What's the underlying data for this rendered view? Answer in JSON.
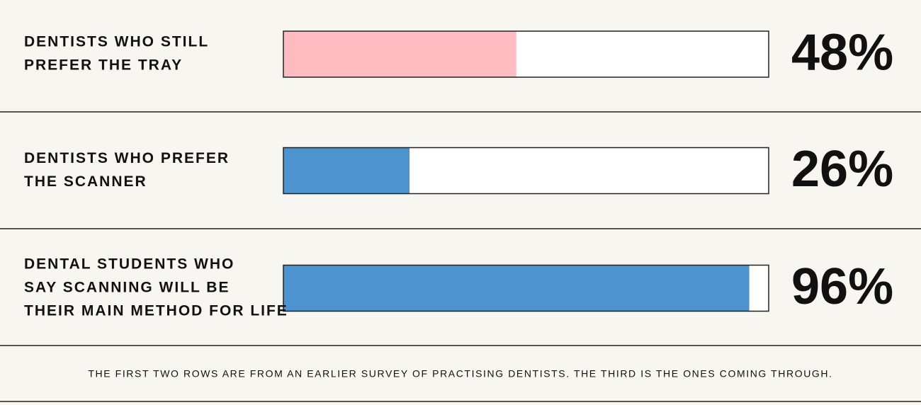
{
  "chart_data": {
    "type": "hbar",
    "categories": [
      [
        "DENTISTS WHO STILL",
        "PREFER THE TRAY"
      ],
      [
        "DENTISTS WHO PREFER",
        "THE SCANNER"
      ],
      [
        "DENTAL STUDENTS WHO",
        "SAY SCANNING WILL BE",
        "THEIR MAIN METHOD FOR LIFE"
      ]
    ],
    "values": [
      48,
      26,
      96
    ],
    "value_labels": [
      "48%",
      "26%",
      "96%"
    ],
    "colors": [
      "#ffbcc0",
      "#4d93d0",
      "#4d93d0"
    ],
    "xlim": [
      0,
      100
    ],
    "note": "THE FIRST TWO ROWS ARE FROM AN EARLIER SURVEY OF PRACTISING DENTISTS. THE THIRD IS THE ONES COMING THROUGH."
  }
}
